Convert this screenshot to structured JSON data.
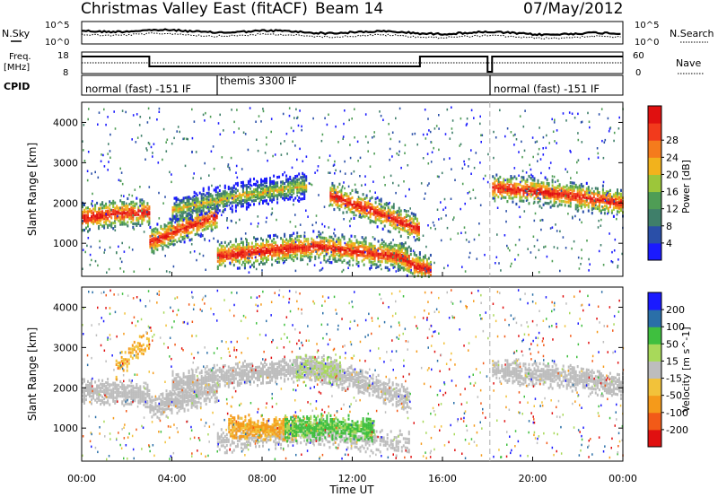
{
  "header": {
    "title": "Christmas Valley East (fitACF)",
    "beam": "Beam 14",
    "date": "07/May/2012"
  },
  "noise_panel": {
    "left_label": "N.Sky",
    "right_label": "N.Search",
    "left_ticks": [
      "10^5",
      "10^0"
    ],
    "right_ticks": [
      "10^5",
      "10^0"
    ]
  },
  "freq_panel": {
    "left_label_1": "Freq.",
    "left_label_2": "[MHz]",
    "right_label": "Nave",
    "left_ticks": [
      "18",
      "8"
    ],
    "right_ticks": [
      "60",
      "0"
    ]
  },
  "cpid_panel": {
    "label": "CPID",
    "segments": [
      "normal (fast) -151 IF",
      "themis 3300 IF",
      "normal (fast) -151 IF"
    ]
  },
  "x_axis": {
    "label": "Time UT",
    "ticks": [
      "00:00",
      "04:00",
      "08:00",
      "12:00",
      "16:00",
      "20:00",
      "00:00"
    ]
  },
  "colors": {
    "power": [
      "#1a1aff",
      "#2a4fa8",
      "#3f7f6a",
      "#4f9d55",
      "#9cc63a",
      "#f2b21c",
      "#f57b1c",
      "#f23a1c",
      "#e01010"
    ],
    "velocity": [
      "#e01010",
      "#f25a18",
      "#f59a1a",
      "#f2c23a",
      "#bdbdbd",
      "#a8d95a",
      "#3fbf3f",
      "#2a6fa8",
      "#1a1aff"
    ]
  },
  "chart_data": [
    {
      "type": "heatmap",
      "title": "Power",
      "ylabel": "Slant Range [km]",
      "xlabel": "",
      "ylim": [
        180,
        4500
      ],
      "xlim": [
        0,
        24
      ],
      "y_ticks": [
        "1000",
        "2000",
        "3000",
        "4000"
      ],
      "colorbar_label": "Power [dB]",
      "colorbar_ticks": [
        "4",
        "8",
        "12",
        "16",
        "20",
        "24",
        "28"
      ],
      "echo_bands": [
        {
          "t_start": 0.0,
          "t_end": 3.0,
          "range_km": [
            1650,
            1750,
            1780
          ],
          "level": "high"
        },
        {
          "t_start": 3.0,
          "t_end": 6.0,
          "range_km": [
            1050,
            1400,
            1700
          ],
          "level": "high"
        },
        {
          "t_start": 4.0,
          "t_end": 10.0,
          "range_km": [
            1850,
            2200,
            2450
          ],
          "level": "mid"
        },
        {
          "t_start": 6.0,
          "t_end": 14.5,
          "range_km": [
            700,
            950,
            650
          ],
          "level": "high"
        },
        {
          "t_start": 11.0,
          "t_end": 15.0,
          "range_km": [
            2200,
            1800,
            1350
          ],
          "level": "high"
        },
        {
          "t_start": 14.0,
          "t_end": 15.5,
          "range_km": [
            700,
            450,
            350
          ],
          "level": "high"
        },
        {
          "t_start": 18.2,
          "t_end": 24.0,
          "range_km": [
            2400,
            2250,
            2000
          ],
          "level": "high"
        }
      ]
    },
    {
      "type": "heatmap",
      "title": "Velocity",
      "ylabel": "Slant Range [km]",
      "xlabel": "Time UT",
      "ylim": [
        180,
        4500
      ],
      "xlim": [
        0,
        24
      ],
      "y_ticks": [
        "1000",
        "2000",
        "3000",
        "4000"
      ],
      "colorbar_label": "Velocity [m s^-1]",
      "colorbar_ticks": [
        "200",
        "100",
        "50",
        "15",
        "-15",
        "-50",
        "-100",
        "-200"
      ],
      "regions": [
        {
          "t_start": 0.0,
          "t_end": 3.0,
          "range_km": [
            1600,
            2200
          ],
          "velocity": "near zero"
        },
        {
          "t_start": 6.5,
          "t_end": 9.5,
          "range_km": [
            800,
            1250
          ],
          "velocity": "negative -50 to -100"
        },
        {
          "t_start": 9.0,
          "t_end": 13.0,
          "range_km": [
            800,
            1350
          ],
          "velocity": "positive 50"
        },
        {
          "t_start": 9.5,
          "t_end": 11.5,
          "range_km": [
            2200,
            2700
          ],
          "velocity": "positive 15 to 50"
        },
        {
          "t_start": 18.2,
          "t_end": 24.0,
          "range_km": [
            1900,
            2700
          ],
          "velocity": "near zero"
        }
      ]
    }
  ]
}
